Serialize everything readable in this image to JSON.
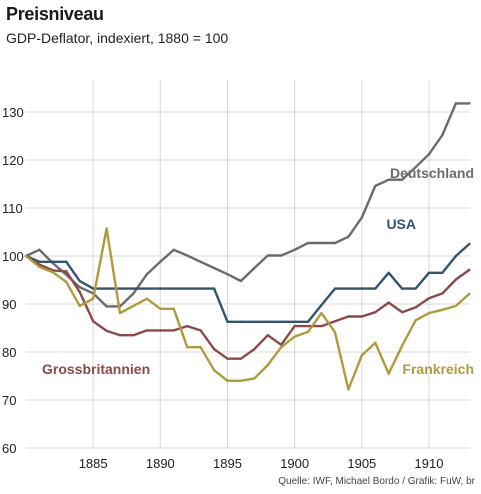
{
  "chart_data": {
    "type": "line",
    "title": "Preisniveau",
    "subtitle": "GDP-Deflator, indexiert, 1880 = 100",
    "source": "Quelle: IWF, Michael Bordo / Grafik: FuW, br",
    "xlabel": "",
    "ylabel": "",
    "xlim": [
      1880,
      1913.5
    ],
    "ylim": [
      60,
      135
    ],
    "yticks": [
      60,
      70,
      80,
      90,
      100,
      110,
      120,
      130
    ],
    "xticks": [
      1885,
      1890,
      1895,
      1900,
      1905,
      1910
    ],
    "grid": "horizontal",
    "legend": "inline labels",
    "series": [
      {
        "name": "Deutschland",
        "color": "#6b6b6b",
        "x": [
          1880,
          1881,
          1882,
          1883,
          1884,
          1885,
          1886,
          1887,
          1888,
          1889,
          1890,
          1891,
          1892,
          1893,
          1894,
          1895,
          1896,
          1897,
          1898,
          1899,
          1900,
          1901,
          1902,
          1903,
          1904,
          1905,
          1906,
          1907,
          1908,
          1909,
          1910,
          1911,
          1912,
          1913
        ],
        "values": [
          100,
          101.3,
          98.5,
          96.1,
          93.5,
          92.2,
          89.5,
          89.5,
          92.2,
          96.2,
          98.8,
          101.3,
          100.1,
          98.8,
          97.5,
          96.2,
          94.8,
          97.5,
          100.1,
          100.1,
          101.3,
          102.7,
          102.7,
          102.7,
          104.0,
          108.0,
          114.6,
          115.9,
          115.9,
          118.5,
          121.2,
          125.2,
          131.8,
          131.8
        ]
      },
      {
        "name": "USA",
        "color": "#33546f",
        "x": [
          1880,
          1881,
          1882,
          1883,
          1884,
          1885,
          1886,
          1887,
          1888,
          1889,
          1890,
          1891,
          1892,
          1893,
          1894,
          1895,
          1896,
          1897,
          1898,
          1899,
          1900,
          1901,
          1902,
          1903,
          1904,
          1905,
          1906,
          1907,
          1908,
          1909,
          1910,
          1911,
          1912,
          1913
        ],
        "values": [
          100,
          98.8,
          98.8,
          98.8,
          94.8,
          93.2,
          93.2,
          93.2,
          93.2,
          93.2,
          93.2,
          93.2,
          93.2,
          93.2,
          93.2,
          86.3,
          86.3,
          86.3,
          86.3,
          86.3,
          86.3,
          86.3,
          89.8,
          93.2,
          93.2,
          93.2,
          93.2,
          96.5,
          93.2,
          93.2,
          96.5,
          96.5,
          100.0,
          102.5
        ]
      },
      {
        "name": "Grossbritannien",
        "color": "#8b4a48",
        "x": [
          1880,
          1881,
          1882,
          1883,
          1884,
          1885,
          1886,
          1887,
          1888,
          1889,
          1890,
          1891,
          1892,
          1893,
          1894,
          1895,
          1896,
          1897,
          1898,
          1899,
          1900,
          1901,
          1902,
          1903,
          1904,
          1905,
          1906,
          1907,
          1908,
          1909,
          1910,
          1911,
          1912,
          1913
        ],
        "values": [
          100,
          98.2,
          97.0,
          96.8,
          92.5,
          86.4,
          84.4,
          83.5,
          83.5,
          84.5,
          84.5,
          84.5,
          85.4,
          84.5,
          80.6,
          78.6,
          78.6,
          80.6,
          83.5,
          81.5,
          85.4,
          85.4,
          85.4,
          86.4,
          87.4,
          87.4,
          88.3,
          90.3,
          88.3,
          89.3,
          91.2,
          92.2,
          95.1,
          97.1
        ]
      },
      {
        "name": "Frankreich",
        "color": "#b09a3e",
        "x": [
          1880,
          1881,
          1882,
          1883,
          1884,
          1885,
          1886,
          1887,
          1888,
          1889,
          1890,
          1891,
          1892,
          1893,
          1894,
          1895,
          1896,
          1897,
          1898,
          1899,
          1900,
          1901,
          1902,
          1903,
          1904,
          1905,
          1906,
          1907,
          1908,
          1909,
          1910,
          1911,
          1912,
          1913
        ],
        "values": [
          100,
          97.7,
          96.6,
          94.6,
          89.6,
          91.1,
          105.7,
          88.1,
          89.6,
          91.1,
          89.0,
          89.0,
          81.0,
          81.0,
          76.2,
          74.0,
          74.0,
          74.5,
          77.3,
          81.0,
          83.2,
          84.2,
          88.1,
          84.1,
          72.2,
          79.3,
          81.9,
          75.5,
          81.3,
          86.6,
          88.1,
          88.8,
          89.6,
          92.1
        ]
      }
    ],
    "annotations": [
      "Deutschland",
      "USA",
      "Grossbritannien",
      "Frankreich"
    ]
  }
}
